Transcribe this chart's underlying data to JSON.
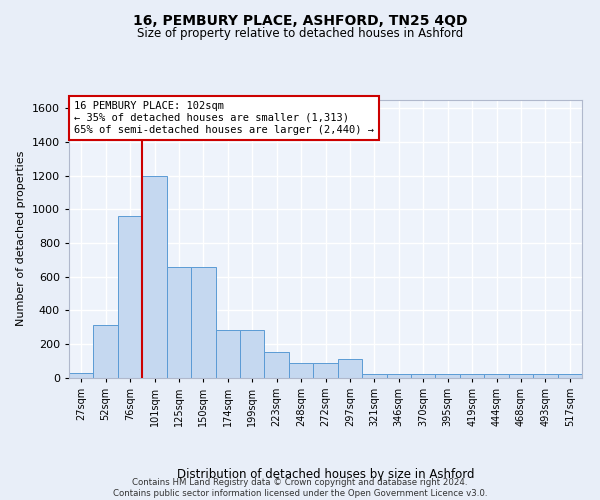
{
  "title": "16, PEMBURY PLACE, ASHFORD, TN25 4QD",
  "subtitle": "Size of property relative to detached houses in Ashford",
  "xlabel": "Distribution of detached houses by size in Ashford",
  "ylabel": "Number of detached properties",
  "bin_labels": [
    "27sqm",
    "52sqm",
    "76sqm",
    "101sqm",
    "125sqm",
    "150sqm",
    "174sqm",
    "199sqm",
    "223sqm",
    "248sqm",
    "272sqm",
    "297sqm",
    "321sqm",
    "346sqm",
    "370sqm",
    "395sqm",
    "419sqm",
    "444sqm",
    "468sqm",
    "493sqm",
    "517sqm"
  ],
  "bin_values": [
    25,
    310,
    960,
    1200,
    660,
    660,
    285,
    285,
    150,
    85,
    85,
    110,
    20,
    20,
    20,
    20,
    20,
    20,
    20,
    20,
    20
  ],
  "bar_color": "#c5d8f0",
  "bar_edge_color": "#5b9bd5",
  "vline_color": "#cc0000",
  "vline_x_index": 3,
  "annotation_text": "16 PEMBURY PLACE: 102sqm\n← 35% of detached houses are smaller (1,313)\n65% of semi-detached houses are larger (2,440) →",
  "annotation_box_color": "#cc0000",
  "ylim": [
    0,
    1650
  ],
  "yticks": [
    0,
    200,
    400,
    600,
    800,
    1000,
    1200,
    1400,
    1600
  ],
  "footer_text": "Contains HM Land Registry data © Crown copyright and database right 2024.\nContains public sector information licensed under the Open Government Licence v3.0.",
  "bg_color": "#e8eef8",
  "plot_bg_color": "#eef3fb",
  "grid_color": "#ffffff"
}
